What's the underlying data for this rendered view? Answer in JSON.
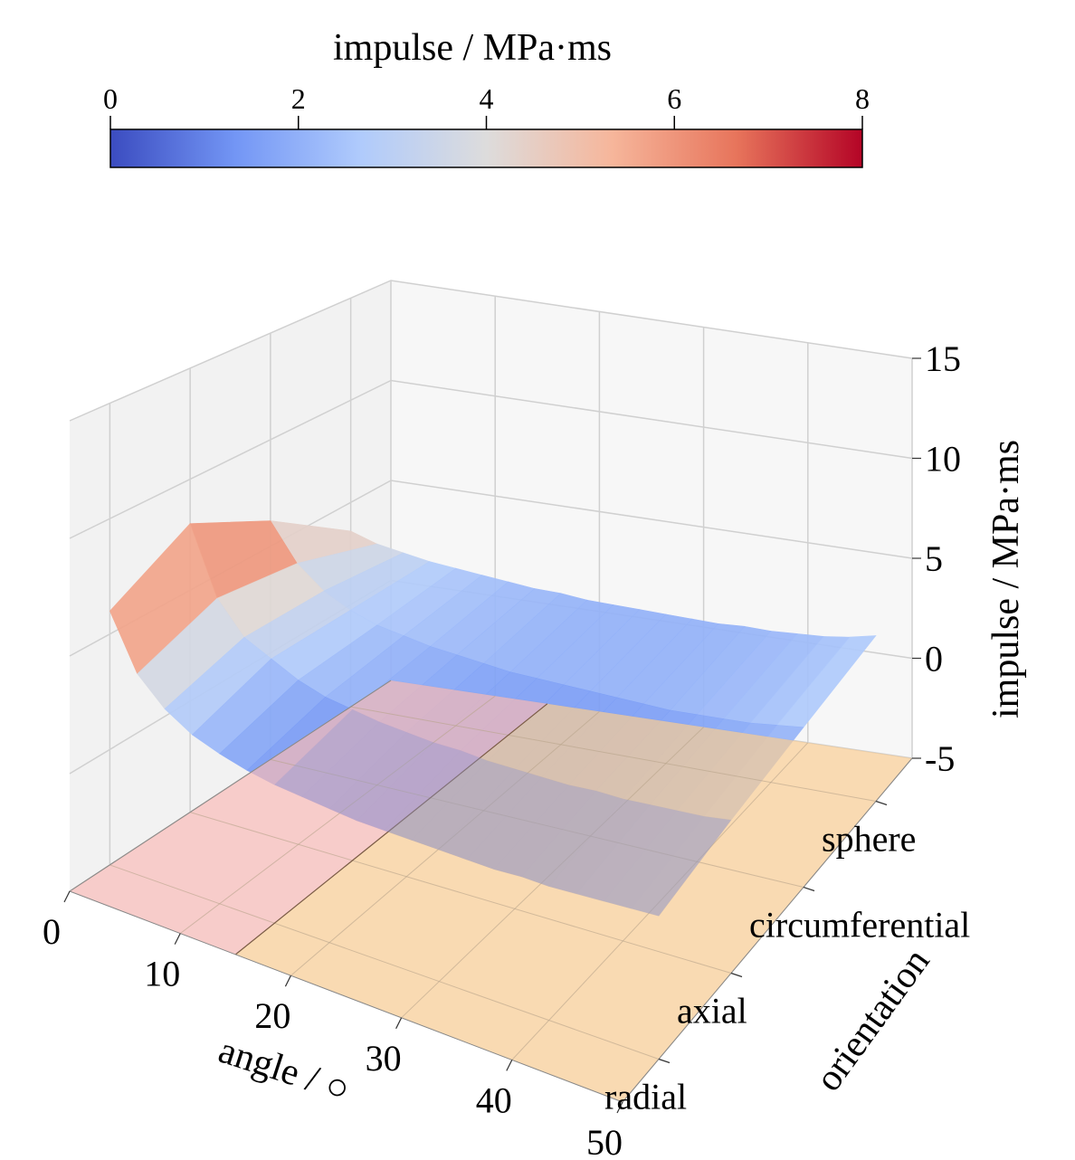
{
  "chart_data": {
    "type": "surface3d",
    "colorbar": {
      "label": "impulse / MPa·ms",
      "ticks": [
        "0",
        "2",
        "4",
        "6",
        "8"
      ],
      "range": [
        0,
        8
      ],
      "colors": [
        "#3b4cc0",
        "#7396f5",
        "#b0cbfc",
        "#dddcdc",
        "#f6b69b",
        "#e7745b",
        "#b40426"
      ]
    },
    "xaxis": {
      "label": "angle / ○",
      "ticks": [
        "0",
        "10",
        "20",
        "30",
        "40",
        "50"
      ],
      "range": [
        0,
        50
      ]
    },
    "yaxis": {
      "label": "orientation",
      "ticks": [
        "radial",
        "axial",
        "circumferential",
        "sphere"
      ]
    },
    "zaxis": {
      "label": "impulse / MPa·ms",
      "ticks": [
        "-5",
        "0",
        "5",
        "10",
        "15"
      ],
      "range": [
        -5,
        15
      ]
    },
    "surface": {
      "x": [
        0,
        2.5,
        5,
        7.5,
        10,
        12.5,
        15,
        17.5,
        20,
        22.5,
        25,
        27.5,
        30,
        32.5,
        35,
        37.5,
        40,
        42.5,
        45,
        47.5,
        50
      ],
      "rows": [
        {
          "orientation": "radial",
          "values": [
            6.0,
            3.7,
            2.6,
            1.9,
            1.5,
            1.2,
            1.0,
            0.9,
            0.8,
            0.7,
            0.7,
            0.7,
            0.7,
            0.7,
            0.7,
            0.8,
            0.8,
            0.9,
            1.0,
            1.1,
            1.2
          ]
        },
        {
          "orientation": "axial",
          "values": [
            8.0,
            5.0,
            3.6,
            3.0,
            2.4,
            2.0,
            1.8,
            1.6,
            1.5,
            1.4,
            1.4,
            1.3,
            1.3,
            1.3,
            1.3,
            1.4,
            1.4,
            1.5,
            1.6,
            1.7,
            1.9
          ]
        },
        {
          "orientation": "circumferential",
          "values": [
            6.2,
            4.5,
            3.5,
            2.9,
            2.5,
            2.3,
            2.1,
            2.0,
            1.9,
            1.8,
            1.8,
            1.8,
            1.8,
            1.8,
            1.8,
            1.8,
            1.9,
            2.0,
            2.1,
            2.3,
            2.5
          ]
        },
        {
          "orientation": "sphere",
          "values": [
            3.6,
            3.2,
            3.0,
            2.8,
            2.7,
            2.6,
            2.5,
            2.4,
            2.4,
            2.3,
            2.3,
            2.3,
            2.3,
            2.3,
            2.3,
            2.4,
            2.4,
            2.5,
            2.6,
            2.8,
            3.1
          ]
        }
      ]
    },
    "regions": [
      {
        "x": [
          0,
          15
        ],
        "color": "#f4b9b6"
      },
      {
        "x": [
          15,
          50
        ],
        "color": "#f6cc94"
      }
    ],
    "grid": true
  }
}
